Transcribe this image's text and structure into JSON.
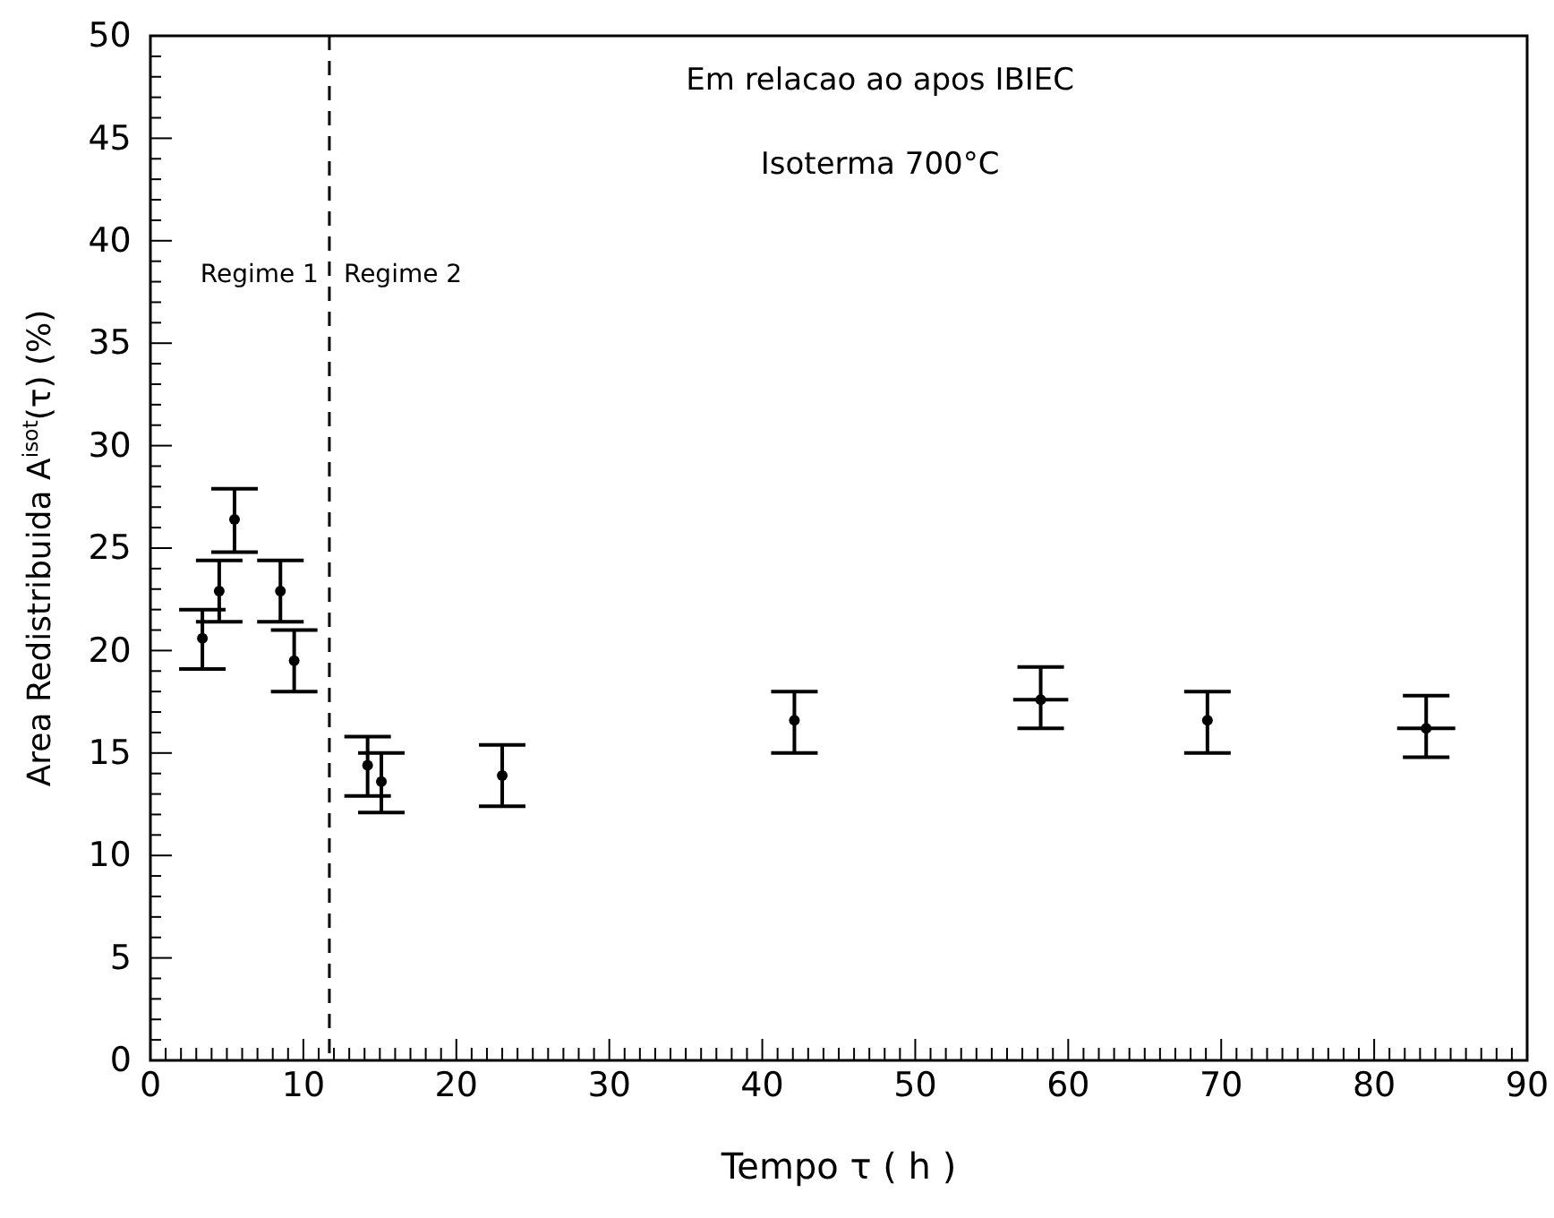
{
  "chart_data": {
    "type": "scatter",
    "xlabel": "Tempo τ ( h )",
    "ylabel": "Area Redistribuida A$^{isot}$(τ) (%)",
    "x": [
      3.4,
      4.5,
      5.5,
      8.5,
      9.4,
      14.2,
      15.1,
      23.0,
      42.1,
      58.2,
      69.1,
      83.4
    ],
    "values": [
      20.6,
      22.9,
      26.4,
      22.9,
      19.5,
      14.4,
      13.6,
      13.9,
      16.6,
      17.6,
      16.6,
      16.2
    ],
    "errors": [
      [
        19.1,
        22.0
      ],
      [
        21.4,
        24.4
      ],
      [
        24.8,
        27.9
      ],
      [
        21.4,
        24.4
      ],
      [
        18.0,
        21.0
      ],
      [
        12.9,
        15.8
      ],
      [
        12.1,
        15.0
      ],
      [
        12.4,
        15.4
      ],
      [
        15.0,
        18.0
      ],
      [
        16.2,
        19.2
      ],
      [
        15.0,
        18.0
      ],
      [
        14.8,
        17.8
      ]
    ],
    "xerrors": [
      null,
      null,
      null,
      null,
      null,
      null,
      null,
      null,
      null,
      1.8,
      null,
      1.9
    ],
    "color": "#000000",
    "marker": "circle",
    "xlim": [
      0,
      90
    ],
    "ylim": [
      0,
      50
    ],
    "xticks": [
      0,
      {
        "value": 1,
        "label": null
      },
      {
        "value": 2,
        "label": null
      },
      {
        "value": 3,
        "label": null
      },
      {
        "value": 4,
        "label": null
      },
      {
        "value": 5,
        "label": null
      },
      {
        "value": 6,
        "label": null
      },
      {
        "value": 7,
        "label": null
      },
      {
        "value": 8,
        "label": null
      },
      {
        "value": 9,
        "label": null
      },
      10,
      {
        "value": 11,
        "label": null
      },
      {
        "value": 12,
        "label": null
      },
      {
        "value": 13,
        "label": null
      },
      {
        "value": 14,
        "label": null
      },
      {
        "value": 15,
        "label": null
      },
      {
        "value": 16,
        "label": null
      },
      {
        "value": 17,
        "label": null
      },
      {
        "value": 18,
        "label": null
      },
      {
        "value": 19,
        "label": null
      },
      20,
      {
        "value": 21,
        "label": null
      },
      {
        "value": 22,
        "label": null
      },
      {
        "value": 23,
        "label": null
      },
      {
        "value": 24,
        "label": null
      },
      {
        "value": 25,
        "label": null
      },
      {
        "value": 26,
        "label": null
      },
      {
        "value": 27,
        "label": null
      },
      {
        "value": 28,
        "label": null
      },
      {
        "value": 29,
        "label": null
      },
      30,
      {
        "value": 31,
        "label": null
      },
      {
        "value": 32,
        "label": null
      },
      {
        "value": 33,
        "label": null
      },
      {
        "value": 34,
        "label": null
      },
      {
        "value": 35,
        "label": null
      },
      {
        "value": 36,
        "label": null
      },
      {
        "value": 37,
        "label": null
      },
      {
        "value": 38,
        "label": null
      },
      {
        "value": 39,
        "label": null
      },
      40,
      {
        "value": 41,
        "label": null
      },
      {
        "value": 42,
        "label": null
      },
      {
        "value": 43,
        "label": null
      },
      {
        "value": 44,
        "label": null
      },
      {
        "value": 45,
        "label": null
      },
      {
        "value": 46,
        "label": null
      },
      {
        "value": 47,
        "label": null
      },
      {
        "value": 48,
        "label": null
      },
      {
        "value": 49,
        "label": null
      },
      50,
      {
        "value": 51,
        "label": null
      },
      {
        "value": 52,
        "label": null
      },
      {
        "value": 53,
        "label": null
      },
      {
        "value": 54,
        "label": null
      },
      {
        "value": 55,
        "label": null
      },
      {
        "value": 56,
        "label": null
      },
      {
        "value": 57,
        "label": null
      },
      {
        "value": 58,
        "label": null
      },
      {
        "value": 59,
        "label": null
      },
      60,
      {
        "value": 61,
        "label": null
      },
      {
        "value": 62,
        "label": null
      },
      {
        "value": 63,
        "label": null
      },
      {
        "value": 64,
        "label": null
      },
      {
        "value": 65,
        "label": null
      },
      {
        "value": 66,
        "label": null
      },
      {
        "value": 67,
        "label": null
      },
      {
        "value": 68,
        "label": null
      },
      {
        "value": 69,
        "label": null
      },
      70,
      {
        "value": 71,
        "label": null
      },
      {
        "value": 72,
        "label": null
      },
      {
        "value": 73,
        "label": null
      },
      {
        "value": 74,
        "label": null
      },
      {
        "value": 75,
        "label": null
      },
      {
        "value": 76,
        "label": null
      },
      {
        "value": 77,
        "label": null
      },
      {
        "value": 78,
        "label": null
      },
      {
        "value": 79,
        "label": null
      },
      80,
      {
        "value": 81,
        "label": null
      },
      {
        "value": 82,
        "label": null
      },
      {
        "value": 83,
        "label": null
      },
      {
        "value": 84,
        "label": null
      },
      {
        "value": 85,
        "label": null
      },
      {
        "value": 86,
        "label": null
      },
      {
        "value": 87,
        "label": null
      },
      {
        "value": 88,
        "label": null
      },
      {
        "value": 89,
        "label": null
      },
      90
    ],
    "yticks": [
      0,
      {
        "value": 1,
        "label": null
      },
      {
        "value": 2,
        "label": null
      },
      {
        "value": 3,
        "label": null
      },
      {
        "value": 4,
        "label": null
      },
      5,
      {
        "value": 6,
        "label": null
      },
      {
        "value": 7,
        "label": null
      },
      {
        "value": 8,
        "label": null
      },
      {
        "value": 9,
        "label": null
      },
      10,
      {
        "value": 11,
        "label": null
      },
      {
        "value": 12,
        "label": null
      },
      {
        "value": 13,
        "label": null
      },
      {
        "value": 14,
        "label": null
      },
      15,
      {
        "value": 16,
        "label": null
      },
      {
        "value": 17,
        "label": null
      },
      {
        "value": 18,
        "label": null
      },
      {
        "value": 19,
        "label": null
      },
      20,
      {
        "value": 21,
        "label": null
      },
      {
        "value": 22,
        "label": null
      },
      {
        "value": 23,
        "label": null
      },
      {
        "value": 24,
        "label": null
      },
      25,
      {
        "value": 26,
        "label": null
      },
      {
        "value": 27,
        "label": null
      },
      {
        "value": 28,
        "label": null
      },
      {
        "value": 29,
        "label": null
      },
      30,
      {
        "value": 31,
        "label": null
      },
      {
        "value": 32,
        "label": null
      },
      {
        "value": 33,
        "label": null
      },
      {
        "value": 34,
        "label": null
      },
      35,
      {
        "value": 36,
        "label": null
      },
      {
        "value": 37,
        "label": null
      },
      {
        "value": 38,
        "label": null
      },
      {
        "value": 39,
        "label": null
      },
      40,
      {
        "value": 41,
        "label": null
      },
      {
        "value": 42,
        "label": null
      },
      {
        "value": 43,
        "label": null
      },
      {
        "value": 44,
        "label": null
      },
      45,
      {
        "value": 46,
        "label": null
      },
      {
        "value": 47,
        "label": null
      },
      {
        "value": 48,
        "label": null
      },
      {
        "value": 49,
        "label": null
      },
      50
    ],
    "ref_lines": [
      {
        "axis": "x",
        "value": 11.7,
        "line_style": "dashed",
        "color": "#000000"
      }
    ],
    "annotations": [
      "Em relacao ao apos IBIEC",
      "Isoterma 700°C",
      {
        "text": "Regime 1",
        "x": 11.7,
        "y": 38
      },
      {
        "text": "Regime 2",
        "x": 11.7,
        "y": 38
      }
    ]
  }
}
